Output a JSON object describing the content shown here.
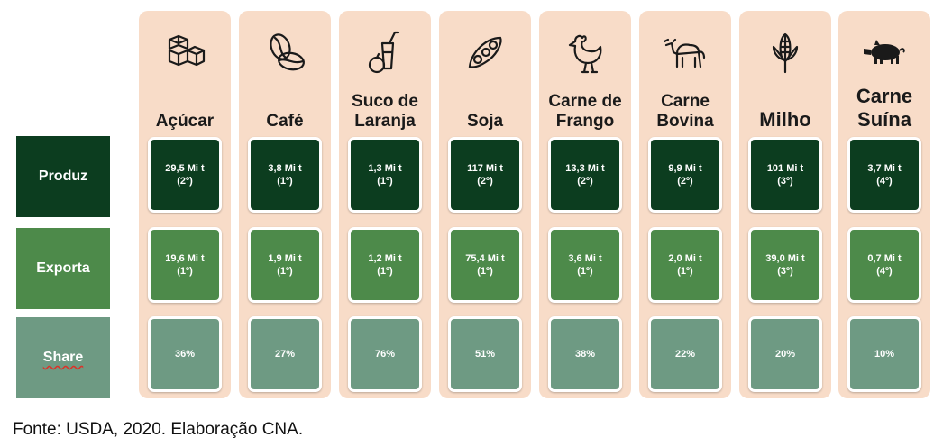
{
  "row_labels": {
    "produz": "Produz",
    "exporta": "Exporta",
    "share": "Share"
  },
  "columns": [
    {
      "name": "Açúcar",
      "icon": "sugar-cubes-icon",
      "produz": "29,5 Mi t\n(2º)",
      "exporta": "19,6 Mi t\n(1º)",
      "share": "36%"
    },
    {
      "name": "Café",
      "icon": "coffee-bean-icon",
      "produz": "3,8 Mi t\n(1º)",
      "exporta": "1,9 Mi t\n(1º)",
      "share": "27%"
    },
    {
      "name": "Suco de\nLaranja",
      "icon": "orange-juice-icon",
      "produz": "1,3 Mi t\n(1º)",
      "exporta": "1,2 Mi t\n(1º)",
      "share": "76%"
    },
    {
      "name": "Soja",
      "icon": "soybean-icon",
      "produz": "117 Mi t\n(2º)",
      "exporta": "75,4 Mi t\n(1º)",
      "share": "51%"
    },
    {
      "name": "Carne de\nFrango",
      "icon": "chicken-icon",
      "produz": "13,3 Mi t\n(2º)",
      "exporta": "3,6 Mi t\n(1º)",
      "share": "38%"
    },
    {
      "name": "Carne\nBovina",
      "icon": "cow-icon",
      "produz": "9,9 Mi t\n(2º)",
      "exporta": "2,0 Mi t\n(1º)",
      "share": "22%"
    },
    {
      "name": "Milho",
      "icon": "corn-icon",
      "produz": "101 Mi t\n(3º)",
      "exporta": "39,0 Mi t\n(3º)",
      "share": "20%"
    },
    {
      "name": "Carne\nSuína",
      "icon": "pig-icon",
      "produz": "3,7 Mi t\n(4º)",
      "exporta": "0,7 Mi t\n(4º)",
      "share": "10%"
    }
  ],
  "source": "Fonte: USDA, 2020. Elaboração CNA.",
  "colors": {
    "column_bg": "#f8dcc8",
    "produz": "#0c3d1f",
    "exporta": "#4d8a4a",
    "share": "#6e9a83"
  }
}
